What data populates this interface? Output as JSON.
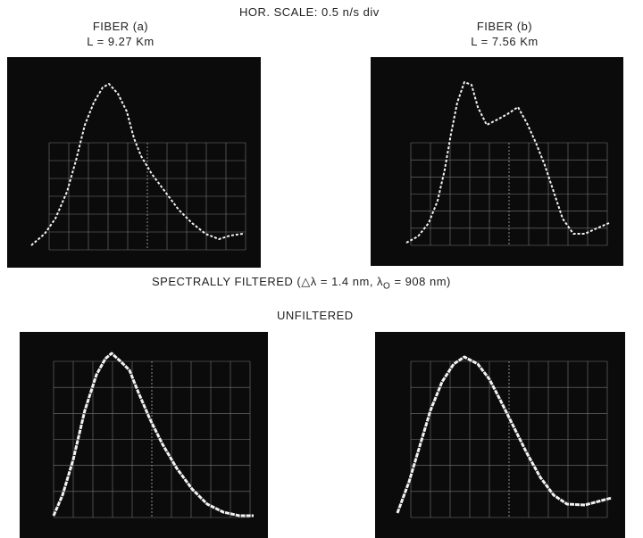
{
  "header": {
    "scale": "HOR. SCALE: 0.5 n/s div"
  },
  "fiber_a": {
    "title": "FIBER (a)",
    "length": "L = 9.27 Km"
  },
  "fiber_b": {
    "title": "FIBER (b)",
    "length": "L = 7.56 Km"
  },
  "filtered": {
    "text": "SPECTRALLY FILTERED (△λ = 1.4 nm, λ",
    "subscript": "O",
    "tail": "= 908 nm)"
  },
  "unfiltered": {
    "text": "UNFILTERED"
  }
}
